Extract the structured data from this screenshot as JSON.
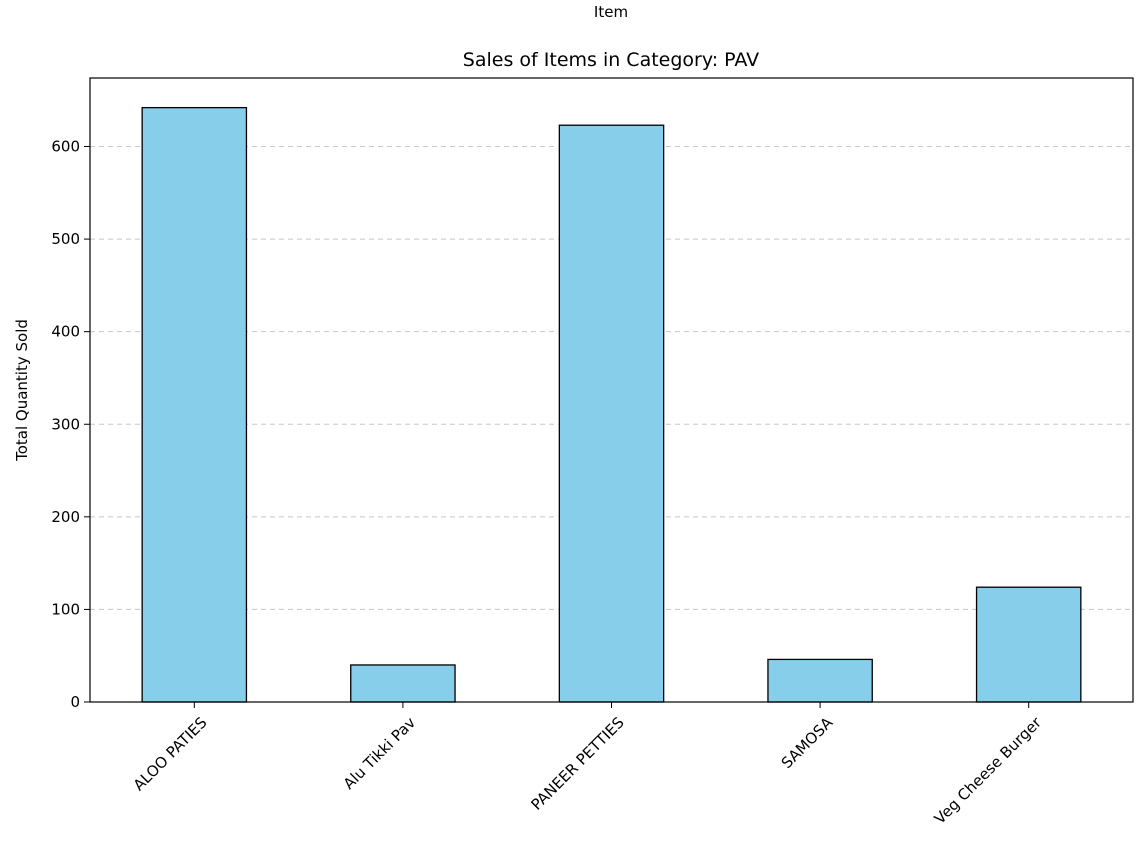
{
  "chart_data": {
    "type": "bar",
    "title": "Sales of Items in Category: PAV",
    "xlabel": "Item",
    "ylabel": "Total Quantity Sold",
    "categories": [
      "ALOO PATIES",
      "Alu Tikki Pav",
      "PANEER PETTIES",
      "SAMOSA",
      "Veg Cheese Burger"
    ],
    "values": [
      642,
      40,
      623,
      46,
      124
    ],
    "ylim": [
      0,
      674
    ],
    "yticks": [
      0,
      100,
      200,
      300,
      400,
      500,
      600
    ],
    "grid": "y-dashed",
    "bar_color": "#87ceeb",
    "edge_color": "#000000",
    "grid_color": "#c8c8c8"
  }
}
